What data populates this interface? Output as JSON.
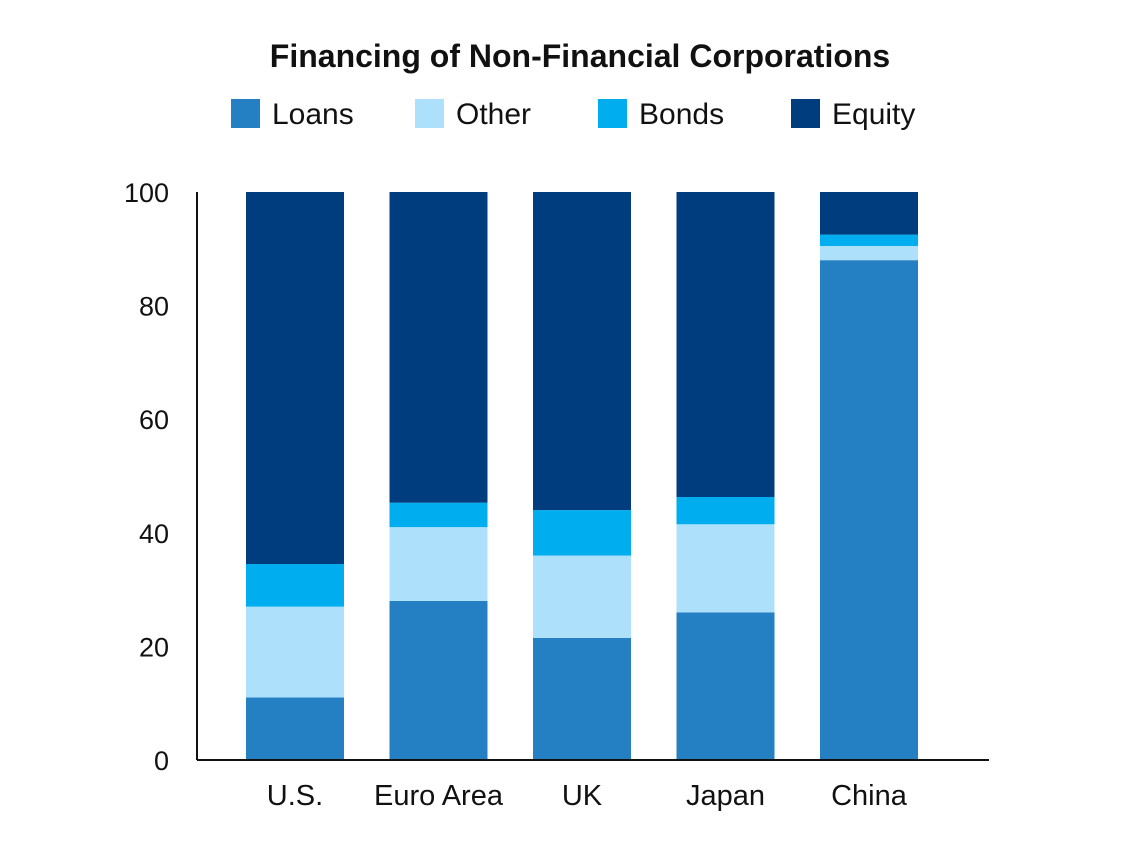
{
  "chart_data": {
    "type": "bar",
    "stacked": true,
    "title": "Financing of Non-Financial Corporations",
    "xlabel": "",
    "ylabel": "",
    "ylim": [
      0,
      100
    ],
    "yticks": [
      0,
      20,
      40,
      60,
      80,
      100
    ],
    "grid": false,
    "legend_position": "top",
    "categories": [
      "U.S.",
      "Euro Area",
      "UK",
      "Japan",
      "China"
    ],
    "series": [
      {
        "name": "Loans",
        "color": "#2580C3",
        "values": [
          11,
          28,
          21.5,
          26,
          88
        ]
      },
      {
        "name": "Other",
        "color": "#ADE0FA",
        "values": [
          16,
          13,
          14.5,
          15.5,
          2.5
        ]
      },
      {
        "name": "Bonds",
        "color": "#00AEEF",
        "values": [
          7.5,
          4.3,
          8,
          4.8,
          2
        ]
      },
      {
        "name": "Equity",
        "color": "#003D7F",
        "values": [
          65.5,
          54.7,
          56,
          53.7,
          7.5
        ]
      }
    ]
  }
}
